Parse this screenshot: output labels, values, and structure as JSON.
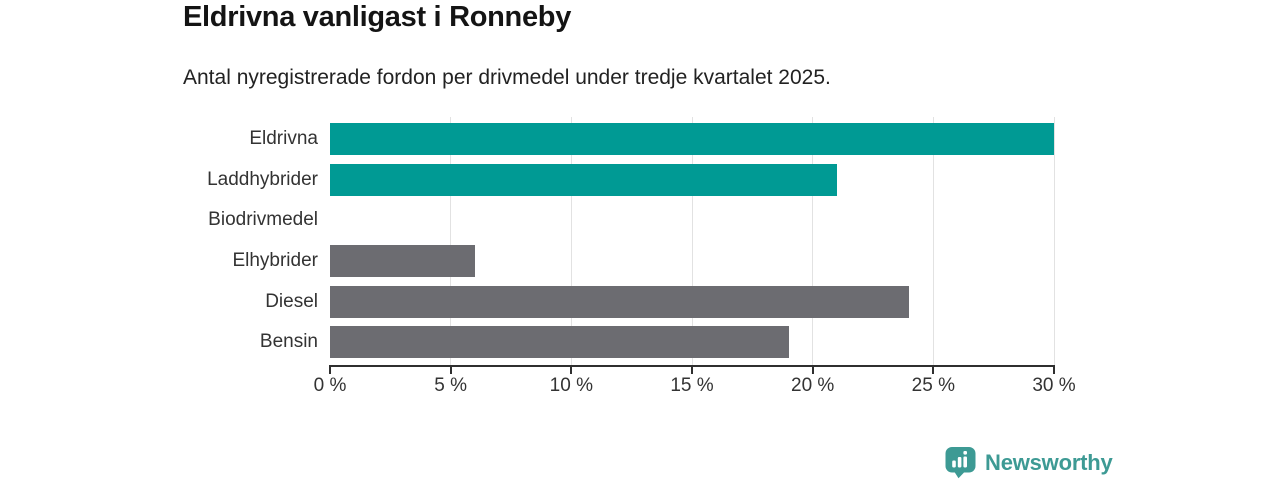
{
  "chart_data": {
    "type": "bar",
    "orientation": "horizontal",
    "title": "Eldrivna vanligast i Ronneby",
    "subtitle": "Antal nyregistrerade fordon per drivmedel under tredje kvartalet 2025.",
    "categories": [
      "Eldrivna",
      "Laddhybrider",
      "Biodrivmedel",
      "Elhybrider",
      "Diesel",
      "Bensin"
    ],
    "values": [
      30,
      21,
      0,
      6,
      24,
      19
    ],
    "unit": "%",
    "xlabel": "",
    "ylabel": "",
    "xlim": [
      0,
      30
    ],
    "x_ticks": [
      0,
      5,
      10,
      15,
      20,
      25,
      30
    ],
    "x_tick_labels": [
      "0 %",
      "5 %",
      "10 %",
      "15 %",
      "20 %",
      "25 %",
      "30 %"
    ],
    "grid": "vertical-gridlines-on",
    "legend": "none",
    "bar_colors": [
      "#009a94",
      "#009a94",
      "#6c6c71",
      "#6c6c71",
      "#6c6c71",
      "#6c6c71"
    ],
    "colors": {
      "highlight": "#009a94",
      "default_gray": "#6c6c71",
      "axis": "#2f2f2f",
      "gridline": "#e2e2e2",
      "text": "#333333"
    }
  },
  "logo": {
    "text": "Newsworthy",
    "color": "#3d9a94",
    "icon": "bar-chart-pin-icon"
  }
}
